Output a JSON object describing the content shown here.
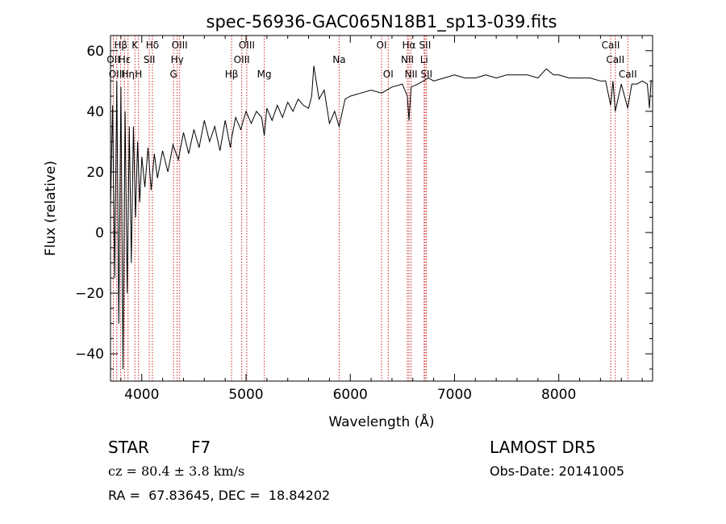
{
  "chart_data": {
    "type": "line",
    "title": "spec-56936-GAC065N18B1_sp13-039.fits",
    "xlabel": "Wavelength (Å)",
    "ylabel": "Flux (relative)",
    "xlim": [
      3700,
      8900
    ],
    "ylim": [
      -49,
      65
    ],
    "x_ticks": [
      4000,
      5000,
      6000,
      7000,
      8000
    ],
    "x_minor_step": 200,
    "y_ticks": [
      -40,
      -20,
      0,
      20,
      40,
      60
    ],
    "y_minor_step": 5,
    "series_color": "#000000",
    "line_marker_color": "#cc2222",
    "spectral_lines": [
      {
        "label": "Hβ",
        "x": 3798,
        "row": 0
      },
      {
        "label": "OII",
        "x": 3727,
        "row": 1
      },
      {
        "label": "OIII",
        "x": 3760,
        "row": 2
      },
      {
        "label": "Hε",
        "x": 3835,
        "row": 1
      },
      {
        "label": "Hη",
        "x": 3868,
        "row": 2
      },
      {
        "label": "K",
        "x": 3934,
        "row": 0
      },
      {
        "label": "H",
        "x": 3969,
        "row": 2
      },
      {
        "label": "Hδ",
        "x": 4102,
        "row": 0
      },
      {
        "label": "SII",
        "x": 4072,
        "row": 1
      },
      {
        "label": "OIII",
        "x": 4363,
        "row": 0
      },
      {
        "label": "Hγ",
        "x": 4340,
        "row": 1
      },
      {
        "label": "G",
        "x": 4305,
        "row": 2
      },
      {
        "label": "OIII",
        "x": 5007,
        "row": 0
      },
      {
        "label": "OIII",
        "x": 4959,
        "row": 1
      },
      {
        "label": "Hβ",
        "x": 4861,
        "row": 2
      },
      {
        "label": "Mg",
        "x": 5175,
        "row": 2
      },
      {
        "label": "Na",
        "x": 5893,
        "row": 1
      },
      {
        "label": "OI",
        "x": 6300,
        "row": 0
      },
      {
        "label": "OI",
        "x": 6364,
        "row": 2
      },
      {
        "label": "Hα",
        "x": 6563,
        "row": 0
      },
      {
        "label": "NII",
        "x": 6548,
        "row": 1
      },
      {
        "label": "NII",
        "x": 6583,
        "row": 2
      },
      {
        "label": "SII",
        "x": 6717,
        "row": 0
      },
      {
        "label": "Li",
        "x": 6708,
        "row": 1
      },
      {
        "label": "SII",
        "x": 6731,
        "row": 2
      },
      {
        "label": "CaII",
        "x": 8498,
        "row": 0
      },
      {
        "label": "CaII",
        "x": 8542,
        "row": 1
      },
      {
        "label": "CaII",
        "x": 8662,
        "row": 2
      }
    ],
    "series": [
      {
        "x": [
          3700,
          3720,
          3740,
          3760,
          3780,
          3800,
          3820,
          3840,
          3860,
          3880,
          3900,
          3920,
          3940,
          3960,
          3980,
          4000,
          4030,
          4060,
          4090,
          4120,
          4150,
          4200,
          4250,
          4300,
          4350,
          4400,
          4450,
          4500,
          4550,
          4600,
          4650,
          4700,
          4750,
          4800,
          4850,
          4861,
          4900,
          4950,
          5000,
          5050,
          5100,
          5150,
          5175,
          5200,
          5250,
          5300,
          5350,
          5400,
          5450,
          5500,
          5550,
          5600,
          5630,
          5650,
          5700,
          5750,
          5800,
          5850,
          5893,
          5950,
          6000,
          6100,
          6200,
          6300,
          6400,
          6500,
          6548,
          6563,
          6583,
          6650,
          6700,
          6750,
          6800,
          6900,
          7000,
          7100,
          7200,
          7300,
          7400,
          7500,
          7600,
          7700,
          7800,
          7880,
          7950,
          8000,
          8100,
          8200,
          8300,
          8400,
          8450,
          8498,
          8520,
          8542,
          8600,
          8662,
          8700,
          8750,
          8800,
          8850,
          8870,
          8885,
          8900
        ],
        "y": [
          8,
          42,
          -15,
          50,
          -30,
          48,
          -45,
          40,
          -20,
          35,
          -10,
          35,
          5,
          30,
          10,
          25,
          15,
          28,
          14,
          26,
          18,
          27,
          20,
          29,
          24,
          33,
          26,
          34,
          28,
          37,
          30,
          35,
          27,
          37,
          28,
          31,
          38,
          34,
          40,
          36,
          40,
          38,
          32,
          41,
          37,
          42,
          38,
          43,
          40,
          44,
          42,
          41,
          45,
          55,
          44,
          47,
          36,
          40,
          35,
          44,
          45,
          46,
          47,
          46,
          48,
          49,
          45,
          37,
          48,
          49,
          50,
          51,
          50,
          51,
          52,
          51,
          51,
          52,
          51,
          52,
          52,
          52,
          51,
          54,
          52,
          52,
          51,
          51,
          51,
          50,
          50,
          42,
          50,
          40,
          49,
          41,
          49,
          49,
          50,
          49,
          41,
          50,
          50
        ]
      }
    ]
  },
  "info": {
    "class_label": "STAR",
    "subclass": "F7",
    "survey": "LAMOST DR5",
    "cz": "cz = 80.4 ± 3.8 km/s",
    "obs_date": "Obs-Date: 20141005",
    "coords": "RA =  67.83645, DEC =  18.84202"
  }
}
